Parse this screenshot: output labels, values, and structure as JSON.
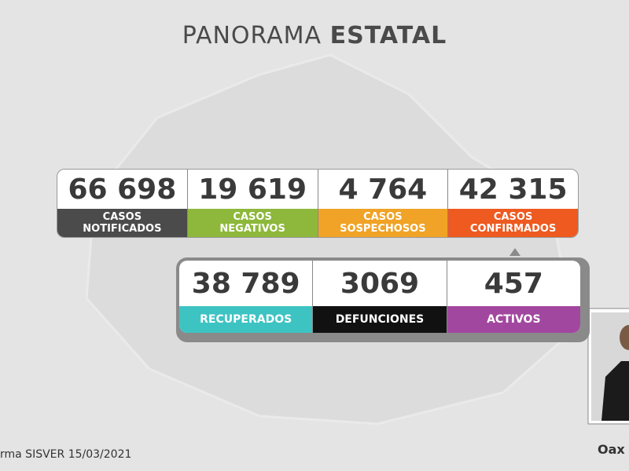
{
  "header": {
    "title_light": "PANORAMA",
    "title_bold": "ESTATAL"
  },
  "top_row": [
    {
      "number": "66 698",
      "label": [
        "CASOS",
        "NOTIFICADOS"
      ],
      "color": "#4b4b4b"
    },
    {
      "number": "19 619",
      "label": [
        "CASOS",
        "NEGATIVOS"
      ],
      "color": "#8db83b"
    },
    {
      "number": "4 764",
      "label": [
        "CASOS",
        "SOSPECHOSOS"
      ],
      "color": "#f0a326"
    },
    {
      "number": "42 315",
      "label": [
        "CASOS",
        "CONFIRMADOS"
      ],
      "color": "#ee5a1f"
    }
  ],
  "bottom_row": [
    {
      "number": "38 789",
      "label": [
        "RECUPERADOS"
      ],
      "color": "#3ec3c3"
    },
    {
      "number": "3069",
      "label": [
        "DEFUNCIONES"
      ],
      "color": "#111111"
    },
    {
      "number": "457",
      "label": [
        "ACTIVOS"
      ],
      "color": "#a2479f"
    }
  ],
  "footer": {
    "source": "rma SISVER",
    "date": "15/03/2021",
    "logo": "Oax"
  }
}
